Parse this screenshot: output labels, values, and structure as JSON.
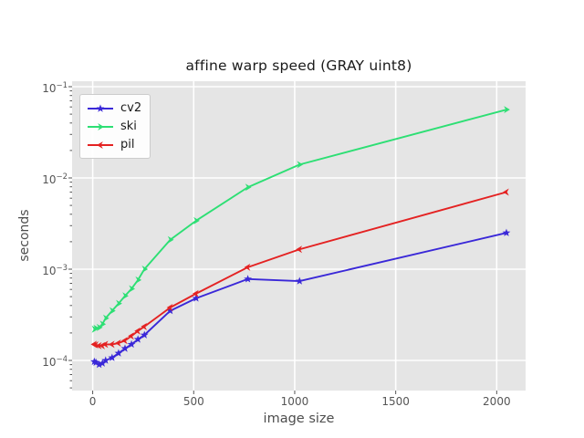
{
  "chart_data": {
    "type": "line",
    "title": "affine warp speed (GRAY uint8)",
    "xlabel": "image size",
    "ylabel": "seconds",
    "x_scale": "linear",
    "y_scale": "log",
    "grid": true,
    "legend_position": "upper left",
    "x_ticks": [
      0,
      500,
      1000,
      1500,
      2000
    ],
    "x_tick_labels": [
      "0",
      "500",
      "1000",
      "1500",
      "2000"
    ],
    "y_tick_exponents": [
      -1,
      -2,
      -3,
      -4
    ],
    "xlim": [
      -102,
      2143
    ],
    "ylim": [
      4.7e-05,
      0.115
    ],
    "x": [
      8,
      16,
      32,
      48,
      64,
      96,
      128,
      160,
      192,
      224,
      256,
      384,
      512,
      768,
      1024,
      2048
    ],
    "series": [
      {
        "name": "cv2",
        "color": "#3a28d8",
        "marker": "star",
        "values": [
          9.7e-05,
          9.5e-05,
          9e-05,
          9.3e-05,
          0.0001,
          0.000107,
          0.00012,
          0.000135,
          0.00015,
          0.00017,
          0.00019,
          0.00035,
          0.00048,
          0.00078,
          0.00074,
          0.0025
        ]
      },
      {
        "name": "ski",
        "color": "#2ddf74",
        "marker": "caret-right",
        "values": [
          0.00022,
          0.000225,
          0.00023,
          0.00025,
          0.00029,
          0.00035,
          0.00042,
          0.00051,
          0.00061,
          0.00076,
          0.001,
          0.0021,
          0.0034,
          0.0079,
          0.014,
          0.056
        ]
      },
      {
        "name": "pil",
        "color": "#e42222",
        "marker": "caret-left",
        "values": [
          0.00015,
          0.000148,
          0.000145,
          0.000145,
          0.00015,
          0.00015,
          0.000155,
          0.000165,
          0.000185,
          0.00021,
          0.000235,
          0.00038,
          0.00054,
          0.00105,
          0.00165,
          0.007
        ]
      }
    ],
    "style": {
      "figure_bg": "#ffffff",
      "plot_bg": "#e5e5e5",
      "grid_color": "#ffffff",
      "tick_color": "#555555",
      "label_color": "#4d4d4d",
      "title_color": "#1a1a1a",
      "legend_bg": "#ffffff",
      "legend_border": "#cccccc"
    }
  }
}
